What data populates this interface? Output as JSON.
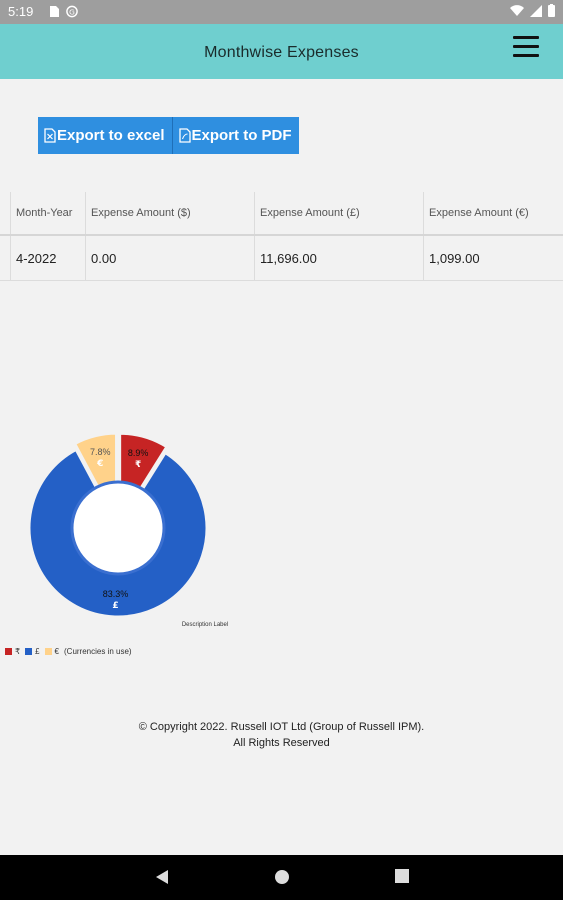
{
  "status_bar": {
    "time": "5:19"
  },
  "app_bar": {
    "title": "Monthwise Expenses"
  },
  "toolbar": {
    "export_excel": "Export to excel",
    "export_pdf": "Export to PDF"
  },
  "table": {
    "headers": [
      "Month-Year",
      "Expense Amount ($)",
      "Expense Amount (£)",
      "Expense Amount (€)"
    ],
    "rows": [
      [
        "4-2022",
        "0.00",
        "11,696.00",
        "1,099.00"
      ]
    ]
  },
  "chart_data": {
    "type": "pie",
    "slices": [
      {
        "label": "₹",
        "percent": 8.9,
        "color": "#c62424"
      },
      {
        "label": "£",
        "percent": 83.3,
        "color": "#2460c6"
      },
      {
        "label": "€",
        "percent": 7.8,
        "color": "#ffd28a"
      }
    ],
    "description_label": "Description Label",
    "legend": [
      "₹",
      "£",
      "€"
    ],
    "legend_note": "(Currencies in use)"
  },
  "footer": {
    "line1": "© Copyright 2022. Russell IOT Ltd (Group of Russell IPM).",
    "line2": "All Rights Reserved"
  },
  "colors": {
    "app_bar": "#6fcfcf",
    "button": "#2f8fe0"
  }
}
